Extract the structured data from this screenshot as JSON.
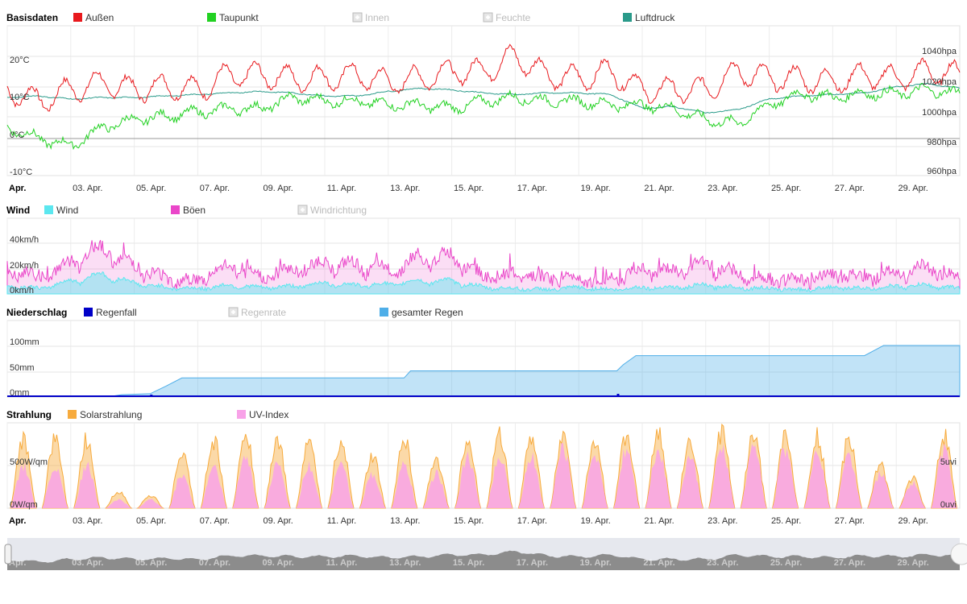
{
  "colors": {
    "aussen": "#e8191d",
    "taupunkt": "#22d122",
    "luftdruck": "#2a9a8a",
    "wind": "#5be7ef",
    "boeen": "#ea46c9",
    "regenfall": "#0000c8",
    "gesamter_regen": "#4eaee8",
    "solar": "#f7ab3d",
    "uv": "#f8a2e8",
    "disabled": "#bbbbbb"
  },
  "x_ticks": [
    "Apr.",
    "03. Apr.",
    "05. Apr.",
    "07. Apr.",
    "09. Apr.",
    "11. Apr.",
    "13. Apr.",
    "15. Apr.",
    "17. Apr.",
    "19. Apr.",
    "21. Apr.",
    "23. Apr.",
    "25. Apr.",
    "27. Apr.",
    "29. Apr."
  ],
  "navigator": {
    "ticks": [
      "Apr.",
      "03. Apr.",
      "05. Apr.",
      "07. Apr.",
      "09. Apr.",
      "11. Apr.",
      "13. Apr.",
      "15. Apr.",
      "17. Apr.",
      "19. Apr.",
      "21. Apr.",
      "23. Apr.",
      "25. Apr.",
      "27. Apr.",
      "29. Apr."
    ],
    "left_handle_icon": "drag-handle-icon",
    "right_handle_icon": "drag-handle-icon"
  },
  "chart_data": [
    {
      "type": "line",
      "title": "Basisdaten",
      "legend": [
        {
          "name": "Außen",
          "enabled": true
        },
        {
          "name": "Taupunkt",
          "enabled": true
        },
        {
          "name": "Innen",
          "enabled": false
        },
        {
          "name": "Feuchte",
          "enabled": false
        },
        {
          "name": "Luftdruck",
          "enabled": true
        }
      ],
      "y_left": {
        "ticks": [
          "20°C",
          "10°C",
          "0°C",
          "-10°C"
        ],
        "values": [
          20,
          10,
          0,
          -10
        ],
        "range": [
          -10,
          30
        ]
      },
      "y_right": {
        "ticks": [
          "1040hpa",
          "1020hpa",
          "1000hpa",
          "980hpa",
          "960hpa"
        ],
        "values": [
          1040,
          1020,
          1000,
          980,
          960
        ],
        "range": [
          960,
          1040
        ]
      },
      "x_day_range": [
        1,
        31
      ],
      "series": [
        {
          "name": "Außen",
          "unit": "°C",
          "x_days": [
            1,
            2,
            3,
            4,
            5,
            6,
            7,
            8,
            9,
            10,
            11,
            12,
            13,
            14,
            15,
            16,
            17,
            18,
            19,
            20,
            21,
            22,
            23,
            24,
            25,
            26,
            27,
            28,
            29,
            30,
            31
          ],
          "values": [
            13,
            10,
            13,
            15,
            13,
            14,
            13,
            17,
            17,
            16,
            16,
            17,
            15,
            16,
            18,
            18,
            22,
            17,
            16,
            18,
            13,
            13,
            13,
            18,
            16,
            16,
            15,
            17,
            16,
            18,
            17
          ]
        },
        {
          "name": "Taupunkt",
          "unit": "°C",
          "x_days": [
            1,
            2,
            3,
            4,
            5,
            6,
            7,
            8,
            9,
            10,
            11,
            12,
            13,
            14,
            15,
            16,
            17,
            18,
            19,
            20,
            21,
            22,
            23,
            24,
            25,
            26,
            27,
            28,
            29,
            30,
            31
          ],
          "values": [
            3,
            0,
            -2,
            3,
            5,
            6,
            7,
            8,
            8,
            11,
            10,
            10,
            9,
            9,
            8,
            10,
            11,
            10,
            10,
            9,
            9,
            8,
            5,
            4,
            9,
            12,
            11,
            12,
            12,
            13,
            12
          ]
        },
        {
          "name": "Luftdruck",
          "unit": "hpa",
          "x_days": [
            1,
            2,
            3,
            4,
            5,
            6,
            7,
            8,
            9,
            10,
            11,
            12,
            13,
            14,
            15,
            16,
            17,
            18,
            19,
            20,
            21,
            22,
            23,
            24,
            25,
            26,
            27,
            28,
            29,
            30,
            31
          ],
          "values": [
            1011,
            1012,
            1010,
            1011,
            1011,
            1012,
            1013,
            1014,
            1015,
            1014,
            1012,
            1012,
            1015,
            1017,
            1016,
            1014,
            1013,
            1014,
            1014,
            1013,
            1004,
            1005,
            1001,
            1003,
            1010,
            1012,
            1013,
            1014,
            1018,
            1020,
            1017
          ]
        }
      ]
    },
    {
      "type": "area",
      "title": "Wind",
      "legend": [
        {
          "name": "Wind",
          "enabled": true
        },
        {
          "name": "Böen",
          "enabled": true
        },
        {
          "name": "Windrichtung",
          "enabled": false
        }
      ],
      "y_left": {
        "ticks": [
          "40km/h",
          "20km/h",
          "0km/h"
        ],
        "values": [
          40,
          20,
          0
        ],
        "range": [
          0,
          45
        ]
      },
      "x_day_range": [
        1,
        31
      ],
      "series": [
        {
          "name": "Wind",
          "unit": "km/h",
          "x_days": [
            1,
            2,
            3,
            4,
            5,
            6,
            7,
            8,
            9,
            10,
            11,
            12,
            13,
            14,
            15,
            16,
            17,
            18,
            19,
            20,
            21,
            22,
            23,
            24,
            25,
            26,
            27,
            28,
            29,
            30,
            31
          ],
          "values": [
            8,
            5,
            12,
            18,
            10,
            6,
            5,
            8,
            6,
            7,
            10,
            8,
            9,
            12,
            12,
            6,
            5,
            4,
            6,
            4,
            6,
            6,
            8,
            6,
            5,
            4,
            6,
            5,
            7,
            8,
            5
          ]
        },
        {
          "name": "Böen",
          "unit": "km/h",
          "x_days": [
            1,
            2,
            3,
            4,
            5,
            6,
            7,
            8,
            9,
            10,
            11,
            12,
            13,
            14,
            15,
            16,
            17,
            18,
            19,
            20,
            21,
            22,
            23,
            24,
            25,
            26,
            27,
            28,
            29,
            30,
            31
          ],
          "values": [
            22,
            15,
            28,
            42,
            26,
            14,
            12,
            25,
            15,
            22,
            28,
            26,
            22,
            32,
            34,
            16,
            18,
            14,
            15,
            12,
            22,
            20,
            28,
            18,
            14,
            12,
            18,
            15,
            20,
            24,
            14
          ]
        }
      ]
    },
    {
      "type": "area",
      "title": "Niederschlag",
      "legend": [
        {
          "name": "Regenfall",
          "enabled": true
        },
        {
          "name": "Regenrate",
          "enabled": false
        },
        {
          "name": "gesamter Regen",
          "enabled": true
        }
      ],
      "y_left": {
        "ticks": [
          "100mm",
          "50mm",
          "0mm"
        ],
        "values": [
          100,
          50,
          0
        ],
        "range": [
          0,
          120
        ]
      },
      "x_day_range": [
        1,
        31
      ],
      "series": [
        {
          "name": "gesamter Regen",
          "unit": "mm",
          "x_days": [
            1,
            4.3,
            4.6,
            5.5,
            6.0,
            6.5,
            13.5,
            13.7,
            20.2,
            20.4,
            20.8,
            28.0,
            28.3,
            28.6,
            31
          ],
          "values": [
            0,
            0,
            3,
            5,
            20,
            36,
            36,
            50,
            50,
            62,
            80,
            80,
            90,
            100,
            100
          ]
        },
        {
          "name": "Regenfall",
          "unit": "mm",
          "x_days": [
            5.5,
            13.5,
            20.2,
            28.3
          ],
          "values": [
            2,
            1,
            3,
            1
          ]
        }
      ]
    },
    {
      "type": "area",
      "title": "Strahlung",
      "legend": [
        {
          "name": "Solarstrahlung",
          "enabled": true
        },
        {
          "name": "UV-Index",
          "enabled": true
        }
      ],
      "y_left": {
        "ticks": [
          "500W/qm",
          "0W/qm"
        ],
        "values": [
          500,
          0
        ],
        "range": [
          0,
          1000
        ]
      },
      "y_right": {
        "ticks": [
          "5uvi",
          "0uvi"
        ],
        "values": [
          5,
          0
        ],
        "range": [
          0,
          10
        ]
      },
      "x_day_range": [
        1,
        31
      ],
      "series": [
        {
          "name": "Solarstrahlung",
          "unit": "W/qm",
          "x_days": [
            1,
            2,
            3,
            4,
            5,
            6,
            7,
            8,
            9,
            10,
            11,
            12,
            13,
            14,
            15,
            16,
            17,
            18,
            19,
            20,
            21,
            22,
            23,
            24,
            25,
            26,
            27,
            28,
            29,
            30,
            31
          ],
          "values": [
            800,
            800,
            800,
            200,
            150,
            650,
            800,
            850,
            800,
            800,
            800,
            600,
            800,
            600,
            800,
            850,
            800,
            850,
            800,
            850,
            900,
            800,
            900,
            850,
            850,
            850,
            800,
            500,
            350,
            850,
            800
          ]
        },
        {
          "name": "UV-Index",
          "unit": "uvi",
          "x_days": [
            1,
            2,
            3,
            4,
            5,
            6,
            7,
            8,
            9,
            10,
            11,
            12,
            13,
            14,
            15,
            16,
            17,
            18,
            19,
            20,
            21,
            22,
            23,
            24,
            25,
            26,
            27,
            28,
            29,
            30,
            31
          ],
          "values": [
            5,
            5,
            5,
            1,
            1,
            4,
            5,
            6,
            5,
            5,
            5,
            4,
            5,
            4,
            6,
            6,
            6,
            7,
            6,
            7,
            7,
            6,
            7,
            7,
            7,
            7,
            6,
            4,
            3,
            7,
            6
          ]
        }
      ]
    }
  ]
}
